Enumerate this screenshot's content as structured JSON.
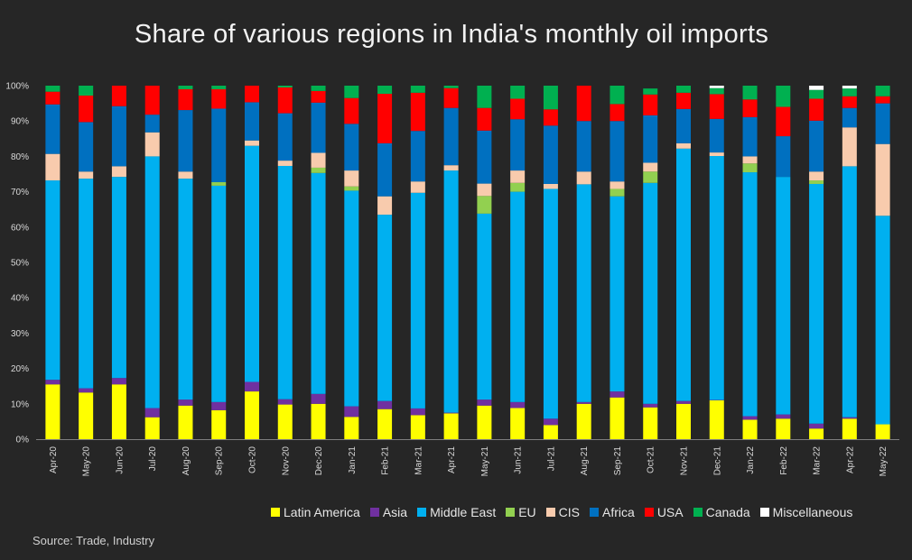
{
  "title": "Share of various regions in India's monthly oil imports",
  "source": "Source: Trade, Industry",
  "chart_data": {
    "type": "bar",
    "stacked": true,
    "title": "Share of various regions in India's monthly oil imports",
    "xlabel": "",
    "ylabel": "",
    "ylim": [
      0,
      100
    ],
    "y_ticks": [
      "0%",
      "10%",
      "20%",
      "30%",
      "40%",
      "50%",
      "60%",
      "70%",
      "80%",
      "90%",
      "100%"
    ],
    "grid": false,
    "legend_position": "bottom",
    "categories": [
      "Apr-20",
      "May-20",
      "Jun-20",
      "Jul-20",
      "Aug-20",
      "Sep-20",
      "Oct-20",
      "Nov-20",
      "Dec-20",
      "Jan-21",
      "Feb-21",
      "Mar-21",
      "Apr-21",
      "May-21",
      "Jun-21",
      "Jul-21",
      "Aug-21",
      "Sep-21",
      "Oct-21",
      "Nov-21",
      "Dec-21",
      "Jan-22",
      "Feb-22",
      "Mar-22",
      "Apr-22",
      "May-22"
    ],
    "series": [
      {
        "name": "Latin America",
        "color": "#FFFF00",
        "values": [
          15.5,
          13.2,
          15.5,
          6.2,
          9.5,
          8.2,
          13.5,
          9.8,
          10.0,
          6.3,
          8.5,
          6.8,
          7.3,
          9.5,
          8.8,
          4.0,
          10.0,
          11.8,
          9.0,
          10.0,
          11.0,
          5.5,
          5.8,
          3.0,
          5.8,
          4.2
        ]
      },
      {
        "name": "Asia",
        "color": "#7030A0",
        "values": [
          1.3,
          1.2,
          1.8,
          2.6,
          1.7,
          2.3,
          2.7,
          1.5,
          2.8,
          3.0,
          2.3,
          1.9,
          0.2,
          1.7,
          1.7,
          1.8,
          0.5,
          1.7,
          1.0,
          0.8,
          0.1,
          1.0,
          1.2,
          1.4,
          0.4,
          0.0
        ]
      },
      {
        "name": "Middle East",
        "color": "#00B0F0",
        "values": [
          56.4,
          59.3,
          56.9,
          71.2,
          62.5,
          61.2,
          66.8,
          66.0,
          62.5,
          61.0,
          52.7,
          61.0,
          68.5,
          52.6,
          59.5,
          65.0,
          61.6,
          55.2,
          62.5,
          71.4,
          69.0,
          69.0,
          67.2,
          67.8,
          71.0,
          59.0
        ]
      },
      {
        "name": "EU",
        "color": "#92D050",
        "values": [
          0,
          0,
          0,
          0,
          0,
          1.0,
          0,
          0,
          1.5,
          1.2,
          0,
          0,
          0,
          5.0,
          2.5,
          0,
          0,
          2.1,
          3.2,
          0,
          0,
          2.5,
          0,
          1.0,
          0,
          0
        ]
      },
      {
        "name": "CIS",
        "color": "#F8CBAD",
        "values": [
          7.5,
          2.0,
          3.0,
          6.8,
          2.0,
          0,
          1.5,
          1.5,
          4.2,
          4.5,
          5.2,
          3.2,
          1.5,
          3.5,
          3.5,
          1.4,
          3.6,
          2.1,
          2.5,
          1.5,
          1.0,
          2.0,
          0,
          2.5,
          11.0,
          20.3
        ]
      },
      {
        "name": "Africa",
        "color": "#0070C0",
        "values": [
          14.0,
          14.0,
          17.0,
          5.0,
          17.4,
          20.8,
          10.8,
          13.4,
          14.2,
          13.2,
          15.0,
          14.3,
          16.2,
          15.0,
          14.5,
          16.5,
          14.3,
          17.1,
          13.4,
          9.7,
          9.5,
          11.1,
          11.5,
          14.4,
          5.5,
          11.5
        ]
      },
      {
        "name": "USA",
        "color": "#FF0000",
        "values": [
          3.6,
          7.5,
          5.8,
          8.2,
          5.9,
          5.5,
          4.7,
          7.3,
          3.3,
          7.3,
          14.0,
          10.8,
          5.6,
          6.4,
          5.8,
          4.6,
          10.0,
          4.8,
          5.9,
          4.6,
          7.0,
          5.0,
          8.3,
          6.2,
          3.3,
          2.0
        ]
      },
      {
        "name": "Canada",
        "color": "#00B050",
        "values": [
          1.7,
          2.8,
          0,
          0,
          1.0,
          1.0,
          0,
          0.5,
          1.5,
          3.5,
          2.3,
          2.0,
          0.7,
          6.3,
          3.7,
          6.7,
          0,
          5.2,
          1.7,
          2.0,
          1.7,
          3.9,
          6.0,
          2.5,
          2.2,
          3.0
        ]
      },
      {
        "name": "Miscellaneous",
        "color": "#FFFFFF",
        "values": [
          0,
          0,
          0,
          0,
          0,
          0,
          0,
          0,
          0,
          0,
          0,
          0,
          0,
          0,
          0,
          0,
          0,
          0,
          0,
          0,
          0.7,
          0,
          0,
          1.2,
          0.8,
          0
        ]
      }
    ]
  }
}
